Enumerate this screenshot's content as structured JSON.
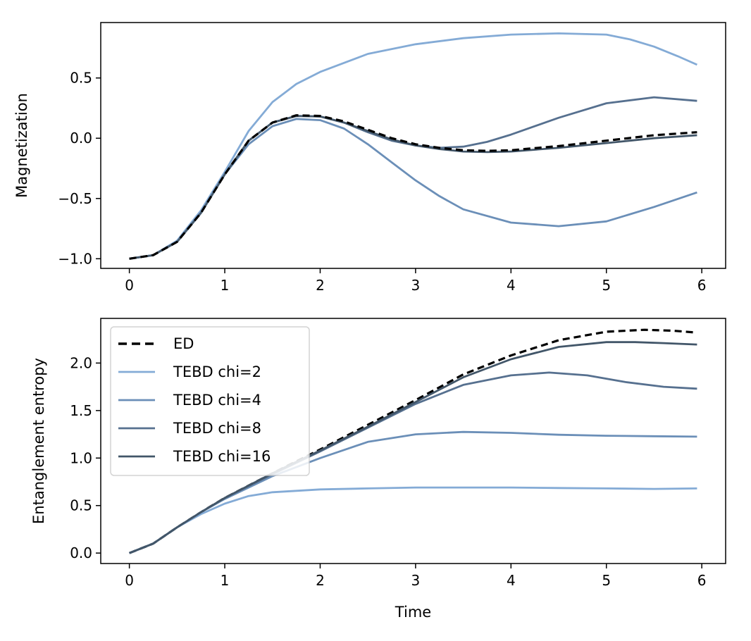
{
  "chart_data": [
    {
      "type": "line",
      "xlabel": "",
      "ylabel": "Magnetization",
      "xlim": [
        -0.3,
        6.25
      ],
      "ylim": [
        -1.08,
        0.96
      ],
      "xticks": [
        0,
        1,
        2,
        3,
        4,
        5,
        6
      ],
      "yticks": [
        -1.0,
        -0.5,
        0.0,
        0.5
      ],
      "ytick_labels": [
        "−1.0",
        "−0.5",
        "0.0",
        "0.5"
      ],
      "series": [
        {
          "name": "TEBD chi=2",
          "color": "#84abd6",
          "dash": "",
          "x": [
            0,
            0.25,
            0.5,
            0.75,
            1.0,
            1.25,
            1.5,
            1.75,
            2.0,
            2.5,
            3.0,
            3.5,
            4.0,
            4.5,
            5.0,
            5.25,
            5.5,
            5.75,
            5.95
          ],
          "y": [
            -1.0,
            -0.97,
            -0.85,
            -0.6,
            -0.28,
            0.06,
            0.3,
            0.45,
            0.55,
            0.7,
            0.78,
            0.83,
            0.86,
            0.87,
            0.86,
            0.82,
            0.76,
            0.68,
            0.61
          ]
        },
        {
          "name": "TEBD chi=4",
          "color": "#6b8fb8",
          "dash": "",
          "x": [
            0,
            0.25,
            0.5,
            0.75,
            1.0,
            1.25,
            1.5,
            1.75,
            2.0,
            2.25,
            2.5,
            2.75,
            3.0,
            3.25,
            3.5,
            4.0,
            4.5,
            5.0,
            5.5,
            5.95
          ],
          "y": [
            -1.0,
            -0.97,
            -0.86,
            -0.62,
            -0.3,
            -0.05,
            0.1,
            0.16,
            0.15,
            0.08,
            -0.05,
            -0.2,
            -0.35,
            -0.48,
            -0.59,
            -0.7,
            -0.73,
            -0.69,
            -0.57,
            -0.45
          ]
        },
        {
          "name": "TEBD chi=8",
          "color": "#56708f",
          "dash": "",
          "x": [
            0,
            0.25,
            0.5,
            0.75,
            1.0,
            1.25,
            1.5,
            1.75,
            2.0,
            2.25,
            2.5,
            2.75,
            3.0,
            3.25,
            3.5,
            3.75,
            4.0,
            4.5,
            5.0,
            5.5,
            5.95
          ],
          "y": [
            -1.0,
            -0.97,
            -0.86,
            -0.62,
            -0.3,
            -0.02,
            0.13,
            0.185,
            0.18,
            0.13,
            0.05,
            -0.02,
            -0.06,
            -0.08,
            -0.07,
            -0.03,
            0.03,
            0.17,
            0.29,
            0.34,
            0.31
          ]
        },
        {
          "name": "TEBD chi=16",
          "color": "#425669",
          "dash": "",
          "x": [
            0,
            0.25,
            0.5,
            0.75,
            1.0,
            1.25,
            1.5,
            1.75,
            2.0,
            2.25,
            2.5,
            2.75,
            3.0,
            3.25,
            3.5,
            3.75,
            4.0,
            4.5,
            5.0,
            5.5,
            5.95
          ],
          "y": [
            -1.0,
            -0.97,
            -0.86,
            -0.62,
            -0.3,
            -0.02,
            0.13,
            0.185,
            0.18,
            0.13,
            0.06,
            -0.01,
            -0.06,
            -0.09,
            -0.11,
            -0.115,
            -0.11,
            -0.08,
            -0.04,
            0.0,
            0.025
          ]
        },
        {
          "name": "ED",
          "color": "#000000",
          "dash": "10,6",
          "x": [
            0,
            0.25,
            0.5,
            0.75,
            1.0,
            1.25,
            1.5,
            1.75,
            2.0,
            2.25,
            2.5,
            2.75,
            3.0,
            3.25,
            3.5,
            3.75,
            4.0,
            4.5,
            5.0,
            5.5,
            5.95
          ],
          "y": [
            -1.0,
            -0.97,
            -0.86,
            -0.62,
            -0.3,
            -0.02,
            0.13,
            0.19,
            0.185,
            0.14,
            0.07,
            0.0,
            -0.05,
            -0.08,
            -0.1,
            -0.105,
            -0.1,
            -0.065,
            -0.02,
            0.025,
            0.05
          ]
        }
      ]
    },
    {
      "type": "line",
      "xlabel": "Time",
      "ylabel": "Entanglement entropy",
      "xlim": [
        -0.3,
        6.25
      ],
      "ylim": [
        -0.11,
        2.47
      ],
      "xticks": [
        0,
        1,
        2,
        3,
        4,
        5,
        6
      ],
      "yticks": [
        0.0,
        0.5,
        1.0,
        1.5,
        2.0
      ],
      "ytick_labels": [
        "0.0",
        "0.5",
        "1.0",
        "1.5",
        "2.0"
      ],
      "legend": {
        "position": "upper-left",
        "entries": [
          "ED",
          "TEBD chi=2",
          "TEBD chi=4",
          "TEBD chi=8",
          "TEBD chi=16"
        ]
      },
      "series": [
        {
          "name": "ED",
          "color": "#000000",
          "dash": "10,6",
          "x": [
            0,
            0.25,
            0.5,
            0.75,
            1.0,
            1.5,
            2.0,
            2.5,
            3.0,
            3.5,
            4.0,
            4.5,
            5.0,
            5.4,
            5.7,
            5.95
          ],
          "y": [
            0.0,
            0.1,
            0.27,
            0.43,
            0.58,
            0.84,
            1.09,
            1.35,
            1.61,
            1.88,
            2.08,
            2.24,
            2.33,
            2.35,
            2.34,
            2.32
          ]
        },
        {
          "name": "TEBD chi=2",
          "color": "#84abd6",
          "dash": "",
          "x": [
            0,
            0.25,
            0.5,
            0.75,
            1.0,
            1.25,
            1.5,
            2.0,
            2.5,
            3.0,
            3.5,
            4.0,
            4.5,
            5.0,
            5.5,
            5.95
          ],
          "y": [
            0.0,
            0.1,
            0.27,
            0.41,
            0.52,
            0.6,
            0.64,
            0.67,
            0.68,
            0.69,
            0.69,
            0.69,
            0.685,
            0.68,
            0.675,
            0.68
          ]
        },
        {
          "name": "TEBD chi=4",
          "color": "#6b8fb8",
          "dash": "",
          "x": [
            0,
            0.25,
            0.5,
            0.75,
            1.0,
            1.5,
            2.0,
            2.5,
            3.0,
            3.5,
            4.0,
            4.5,
            5.0,
            5.5,
            5.95
          ],
          "y": [
            0.0,
            0.1,
            0.27,
            0.43,
            0.57,
            0.81,
            1.0,
            1.17,
            1.25,
            1.275,
            1.265,
            1.245,
            1.235,
            1.23,
            1.225
          ]
        },
        {
          "name": "TEBD chi=8",
          "color": "#56708f",
          "dash": "",
          "x": [
            0,
            0.25,
            0.5,
            0.75,
            1.0,
            1.5,
            2.0,
            2.5,
            3.0,
            3.5,
            4.0,
            4.4,
            4.8,
            5.2,
            5.6,
            5.95
          ],
          "y": [
            0.0,
            0.1,
            0.27,
            0.43,
            0.58,
            0.83,
            1.07,
            1.32,
            1.57,
            1.77,
            1.87,
            1.9,
            1.87,
            1.8,
            1.75,
            1.73
          ]
        },
        {
          "name": "TEBD chi=16",
          "color": "#425669",
          "dash": "",
          "x": [
            0,
            0.25,
            0.5,
            0.75,
            1.0,
            1.5,
            2.0,
            2.5,
            3.0,
            3.5,
            4.0,
            4.5,
            5.0,
            5.3,
            5.6,
            5.95
          ],
          "y": [
            0.0,
            0.1,
            0.27,
            0.43,
            0.58,
            0.84,
            1.08,
            1.33,
            1.59,
            1.85,
            2.04,
            2.17,
            2.22,
            2.22,
            2.21,
            2.195
          ]
        }
      ]
    }
  ]
}
